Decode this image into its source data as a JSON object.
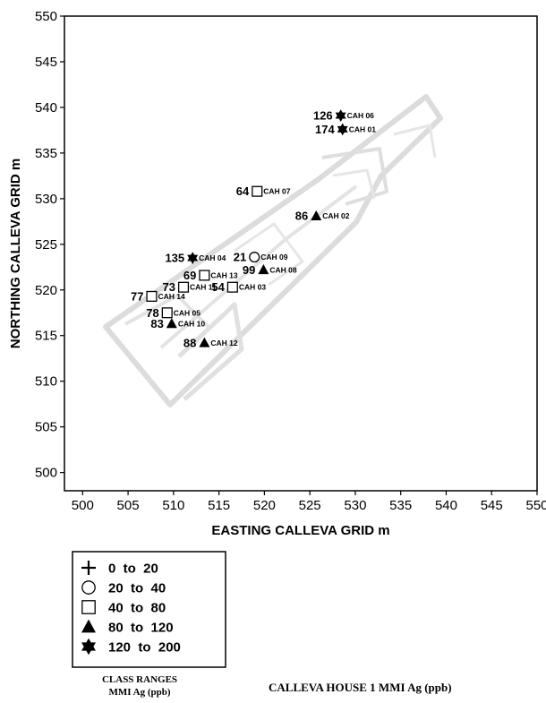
{
  "chart_data": {
    "type": "scatter",
    "title": "CALLEVA HOUSE 1 MMI Ag (ppb)",
    "xlabel": "EASTING CALLEVA GRID m",
    "ylabel": "NORTHING CALLEVA GRID m",
    "xlim": [
      498,
      550
    ],
    "ylim": [
      498,
      550
    ],
    "xticks": [
      500,
      505,
      510,
      515,
      520,
      525,
      530,
      535,
      540,
      545,
      550
    ],
    "yticks": [
      500,
      505,
      510,
      515,
      520,
      525,
      530,
      535,
      540,
      545,
      550
    ],
    "legend": {
      "title": "CLASS RANGES MMI Ag (ppb)",
      "title_lines": [
        "CLASS RANGES",
        "MMI Ag (ppb)"
      ],
      "placement": "bottom-left",
      "entries": [
        {
          "symbol": "plus",
          "label": "0  to  20"
        },
        {
          "symbol": "circle",
          "label": "20  to  40"
        },
        {
          "symbol": "square",
          "label": "40  to  80"
        },
        {
          "symbol": "triangle",
          "label": "80  to  120"
        },
        {
          "symbol": "star",
          "label": "120  to  200"
        }
      ]
    },
    "points": [
      {
        "id": "CAH 06",
        "value": "126",
        "x": 528.4,
        "y": 539.1,
        "symbol": "star"
      },
      {
        "id": "CAH 01",
        "value": "174",
        "x": 528.6,
        "y": 537.6,
        "symbol": "star"
      },
      {
        "id": "CAH 07",
        "value": "64",
        "x": 519.2,
        "y": 530.8,
        "symbol": "square"
      },
      {
        "id": "CAH 02",
        "value": "86",
        "x": 525.7,
        "y": 528.1,
        "symbol": "triangle"
      },
      {
        "id": "CAH 09",
        "value": "21",
        "x": 518.9,
        "y": 523.6,
        "symbol": "circle"
      },
      {
        "id": "CAH 04",
        "value": "135",
        "x": 512.1,
        "y": 523.5,
        "symbol": "star"
      },
      {
        "id": "CAH 08",
        "value": "99",
        "x": 519.9,
        "y": 522.2,
        "symbol": "triangle"
      },
      {
        "id": "CAH 13",
        "value": "69",
        "x": 513.4,
        "y": 521.6,
        "symbol": "square"
      },
      {
        "id": "CAH 03",
        "value": "54",
        "x": 516.5,
        "y": 520.3,
        "symbol": "square"
      },
      {
        "id": "CAH 11",
        "value": "73",
        "x": 511.1,
        "y": 520.3,
        "symbol": "square"
      },
      {
        "id": "CAH 14",
        "value": "77",
        "x": 507.6,
        "y": 519.3,
        "symbol": "square"
      },
      {
        "id": "CAH 05",
        "value": "78",
        "x": 509.3,
        "y": 517.5,
        "symbol": "square"
      },
      {
        "id": "CAH 10",
        "value": "83",
        "x": 509.8,
        "y": 516.3,
        "symbol": "triangle"
      },
      {
        "id": "CAH 12",
        "value": "88",
        "x": 513.4,
        "y": 514.2,
        "symbol": "triangle"
      }
    ],
    "grid": false
  }
}
